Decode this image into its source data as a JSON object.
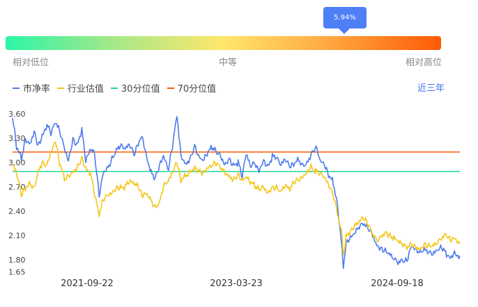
{
  "tooltip": {
    "value": "5.94%"
  },
  "scale": {
    "low": "相对低位",
    "mid": "中等",
    "high": "相对高位"
  },
  "legend": {
    "items": [
      {
        "label": "市净率",
        "color": "#4b7bec"
      },
      {
        "label": "行业估值",
        "color": "#f5c518"
      },
      {
        "label": "30分位值",
        "color": "#1ed88f"
      },
      {
        "label": "70分位值",
        "color": "#ff5a06"
      }
    ]
  },
  "range_button": {
    "label": "近三年"
  },
  "chart_data": {
    "type": "line",
    "y_ticks": [
      "3.60",
      "3.30",
      "3.00",
      "2.70",
      "2.40",
      "2.10",
      "1.80",
      "1.65"
    ],
    "x_ticks": [
      "2021-09-22",
      "2023-03-23",
      "2024-09-18"
    ],
    "x_range": [
      "2020-12-01",
      "2025-03-20"
    ],
    "ylim": [
      1.65,
      3.65
    ],
    "reference_lines": [
      {
        "name": "30分位值",
        "value": 2.89,
        "color": "#1ed88f"
      },
      {
        "name": "70分位值",
        "value": 3.13,
        "color": "#ff5a06"
      }
    ],
    "series": [
      {
        "name": "市净率",
        "color": "#4b7bec",
        "points": [
          [
            "2020-12-01",
            3.55
          ],
          [
            "2020-12-15",
            3.2
          ],
          [
            "2021-01-01",
            3.05
          ],
          [
            "2021-01-15",
            3.3
          ],
          [
            "2021-02-01",
            3.25
          ],
          [
            "2021-02-15",
            3.4
          ],
          [
            "2021-03-01",
            3.2
          ],
          [
            "2021-03-15",
            3.3
          ],
          [
            "2021-04-01",
            3.45
          ],
          [
            "2021-04-15",
            3.35
          ],
          [
            "2021-05-01",
            3.5
          ],
          [
            "2021-05-15",
            3.4
          ],
          [
            "2021-06-01",
            3.2
          ],
          [
            "2021-06-15",
            3.05
          ],
          [
            "2021-07-01",
            3.3
          ],
          [
            "2021-07-15",
            3.2
          ],
          [
            "2021-08-01",
            3.4
          ],
          [
            "2021-08-15",
            3.0
          ],
          [
            "2021-09-01",
            3.15
          ],
          [
            "2021-09-15",
            3.1
          ],
          [
            "2021-10-01",
            2.6
          ],
          [
            "2021-10-15",
            2.9
          ],
          [
            "2021-11-01",
            2.95
          ],
          [
            "2021-11-15",
            3.05
          ],
          [
            "2021-12-01",
            3.15
          ],
          [
            "2021-12-15",
            3.2
          ],
          [
            "2022-01-01",
            3.15
          ],
          [
            "2022-01-15",
            3.2
          ],
          [
            "2022-02-01",
            3.1
          ],
          [
            "2022-02-15",
            3.25
          ],
          [
            "2022-03-01",
            3.35
          ],
          [
            "2022-03-15",
            3.1
          ],
          [
            "2022-04-01",
            2.9
          ],
          [
            "2022-04-15",
            2.8
          ],
          [
            "2022-05-01",
            2.95
          ],
          [
            "2022-05-15",
            3.05
          ],
          [
            "2022-06-01",
            2.9
          ],
          [
            "2022-06-15",
            3.2
          ],
          [
            "2022-07-01",
            3.6
          ],
          [
            "2022-07-15",
            3.1
          ],
          [
            "2022-08-01",
            3.0
          ],
          [
            "2022-08-15",
            3.05
          ],
          [
            "2022-09-01",
            3.2
          ],
          [
            "2022-09-15",
            3.05
          ],
          [
            "2022-10-01",
            3.0
          ],
          [
            "2022-10-15",
            3.1
          ],
          [
            "2022-11-01",
            3.18
          ],
          [
            "2022-11-15",
            3.15
          ],
          [
            "2022-12-01",
            3.1
          ],
          [
            "2022-12-15",
            3.0
          ],
          [
            "2023-01-01",
            3.05
          ],
          [
            "2023-01-15",
            2.95
          ],
          [
            "2023-02-01",
            3.0
          ],
          [
            "2023-02-15",
            2.8
          ],
          [
            "2023-03-01",
            3.1
          ],
          [
            "2023-03-15",
            2.95
          ],
          [
            "2023-04-01",
            3.0
          ],
          [
            "2023-04-15",
            2.92
          ],
          [
            "2023-05-01",
            3.05
          ],
          [
            "2023-05-15",
            2.95
          ],
          [
            "2023-06-01",
            3.08
          ],
          [
            "2023-06-15",
            3.05
          ],
          [
            "2023-07-01",
            2.95
          ],
          [
            "2023-07-15",
            3.02
          ],
          [
            "2023-08-01",
            2.95
          ],
          [
            "2023-08-15",
            3.0
          ],
          [
            "2023-09-01",
            3.05
          ],
          [
            "2023-09-15",
            2.98
          ],
          [
            "2023-10-01",
            3.0
          ],
          [
            "2023-10-15",
            3.1
          ],
          [
            "2023-11-01",
            3.18
          ],
          [
            "2023-11-15",
            3.0
          ],
          [
            "2023-12-01",
            2.95
          ],
          [
            "2023-12-15",
            2.85
          ],
          [
            "2024-01-01",
            2.75
          ],
          [
            "2024-01-15",
            2.5
          ],
          [
            "2024-02-01",
            1.95
          ],
          [
            "2024-02-05",
            1.7
          ],
          [
            "2024-02-15",
            2.0
          ],
          [
            "2024-03-01",
            2.05
          ],
          [
            "2024-03-15",
            2.1
          ],
          [
            "2024-04-01",
            2.2
          ],
          [
            "2024-04-15",
            2.25
          ],
          [
            "2024-05-01",
            2.2
          ],
          [
            "2024-05-15",
            2.15
          ],
          [
            "2024-06-01",
            2.0
          ],
          [
            "2024-06-15",
            1.95
          ],
          [
            "2024-07-01",
            1.9
          ],
          [
            "2024-07-15",
            1.85
          ],
          [
            "2024-08-01",
            1.8
          ],
          [
            "2024-08-15",
            1.75
          ],
          [
            "2024-09-01",
            1.78
          ],
          [
            "2024-09-15",
            1.8
          ],
          [
            "2024-10-01",
            2.0
          ],
          [
            "2024-10-15",
            1.95
          ],
          [
            "2024-11-01",
            1.9
          ],
          [
            "2024-11-15",
            1.92
          ],
          [
            "2024-12-01",
            1.88
          ],
          [
            "2024-12-15",
            1.85
          ],
          [
            "2025-01-01",
            1.9
          ],
          [
            "2025-01-15",
            1.95
          ],
          [
            "2025-02-01",
            1.88
          ],
          [
            "2025-02-15",
            1.85
          ],
          [
            "2025-03-01",
            1.9
          ],
          [
            "2025-03-20",
            1.85
          ]
        ]
      },
      {
        "name": "行业估值",
        "color": "#f5c518",
        "points": [
          [
            "2020-12-01",
            2.95
          ],
          [
            "2020-12-15",
            2.85
          ],
          [
            "2021-01-01",
            2.6
          ],
          [
            "2021-01-15",
            2.7
          ],
          [
            "2021-02-01",
            2.75
          ],
          [
            "2021-02-15",
            2.7
          ],
          [
            "2021-03-01",
            2.9
          ],
          [
            "2021-03-15",
            3.0
          ],
          [
            "2021-04-01",
            2.95
          ],
          [
            "2021-04-15",
            3.1
          ],
          [
            "2021-05-01",
            3.25
          ],
          [
            "2021-05-15",
            3.0
          ],
          [
            "2021-06-01",
            2.8
          ],
          [
            "2021-06-15",
            2.85
          ],
          [
            "2021-07-01",
            2.9
          ],
          [
            "2021-07-15",
            2.95
          ],
          [
            "2021-08-01",
            3.05
          ],
          [
            "2021-08-15",
            2.9
          ],
          [
            "2021-09-01",
            2.85
          ],
          [
            "2021-09-15",
            2.6
          ],
          [
            "2021-10-01",
            2.35
          ],
          [
            "2021-10-15",
            2.55
          ],
          [
            "2021-11-01",
            2.62
          ],
          [
            "2021-11-15",
            2.65
          ],
          [
            "2021-12-01",
            2.7
          ],
          [
            "2021-12-15",
            2.68
          ],
          [
            "2022-01-01",
            2.7
          ],
          [
            "2022-01-15",
            2.75
          ],
          [
            "2022-02-01",
            2.72
          ],
          [
            "2022-02-15",
            2.7
          ],
          [
            "2022-03-01",
            2.6
          ],
          [
            "2022-03-15",
            2.65
          ],
          [
            "2022-04-01",
            2.55
          ],
          [
            "2022-04-15",
            2.45
          ],
          [
            "2022-05-01",
            2.5
          ],
          [
            "2022-05-15",
            2.7
          ],
          [
            "2022-06-01",
            2.75
          ],
          [
            "2022-06-15",
            2.85
          ],
          [
            "2022-07-01",
            3.0
          ],
          [
            "2022-07-15",
            2.8
          ],
          [
            "2022-08-01",
            2.85
          ],
          [
            "2022-08-15",
            2.9
          ],
          [
            "2022-09-01",
            2.95
          ],
          [
            "2022-09-15",
            2.9
          ],
          [
            "2022-10-01",
            2.85
          ],
          [
            "2022-10-15",
            2.9
          ],
          [
            "2022-11-01",
            2.95
          ],
          [
            "2022-11-15",
            3.0
          ],
          [
            "2022-12-01",
            2.95
          ],
          [
            "2022-12-15",
            2.9
          ],
          [
            "2023-01-01",
            2.85
          ],
          [
            "2023-01-15",
            2.8
          ],
          [
            "2023-02-01",
            2.85
          ],
          [
            "2023-02-15",
            2.75
          ],
          [
            "2023-03-01",
            2.8
          ],
          [
            "2023-03-15",
            2.75
          ],
          [
            "2023-04-01",
            2.7
          ],
          [
            "2023-04-15",
            2.68
          ],
          [
            "2023-05-01",
            2.72
          ],
          [
            "2023-05-15",
            2.65
          ],
          [
            "2023-06-01",
            2.7
          ],
          [
            "2023-06-15",
            2.68
          ],
          [
            "2023-07-01",
            2.62
          ],
          [
            "2023-07-15",
            2.7
          ],
          [
            "2023-08-01",
            2.65
          ],
          [
            "2023-08-15",
            2.75
          ],
          [
            "2023-09-01",
            2.8
          ],
          [
            "2023-09-15",
            2.85
          ],
          [
            "2023-10-01",
            2.9
          ],
          [
            "2023-10-15",
            2.95
          ],
          [
            "2023-11-01",
            2.9
          ],
          [
            "2023-11-15",
            2.85
          ],
          [
            "2023-12-01",
            2.8
          ],
          [
            "2023-12-15",
            2.7
          ],
          [
            "2024-01-01",
            2.6
          ],
          [
            "2024-01-15",
            2.4
          ],
          [
            "2024-02-01",
            2.1
          ],
          [
            "2024-02-05",
            1.85
          ],
          [
            "2024-02-15",
            2.1
          ],
          [
            "2024-03-01",
            2.15
          ],
          [
            "2024-03-15",
            2.2
          ],
          [
            "2024-04-01",
            2.25
          ],
          [
            "2024-04-15",
            2.3
          ],
          [
            "2024-05-01",
            2.25
          ],
          [
            "2024-05-15",
            2.15
          ],
          [
            "2024-06-01",
            2.05
          ],
          [
            "2024-06-15",
            2.1
          ],
          [
            "2024-07-01",
            2.15
          ],
          [
            "2024-07-15",
            2.1
          ],
          [
            "2024-08-01",
            2.05
          ],
          [
            "2024-08-15",
            2.0
          ],
          [
            "2024-09-01",
            1.98
          ],
          [
            "2024-09-15",
            1.95
          ],
          [
            "2024-10-01",
            2.0
          ],
          [
            "2024-10-15",
            1.98
          ],
          [
            "2024-11-01",
            1.95
          ],
          [
            "2024-11-15",
            2.0
          ],
          [
            "2024-12-01",
            1.96
          ],
          [
            "2024-12-15",
            1.95
          ],
          [
            "2025-01-01",
            2.0
          ],
          [
            "2025-01-15",
            2.05
          ],
          [
            "2025-02-01",
            2.1
          ],
          [
            "2025-02-15",
            2.05
          ],
          [
            "2025-03-01",
            2.1
          ],
          [
            "2025-03-20",
            2.0
          ]
        ]
      }
    ]
  }
}
